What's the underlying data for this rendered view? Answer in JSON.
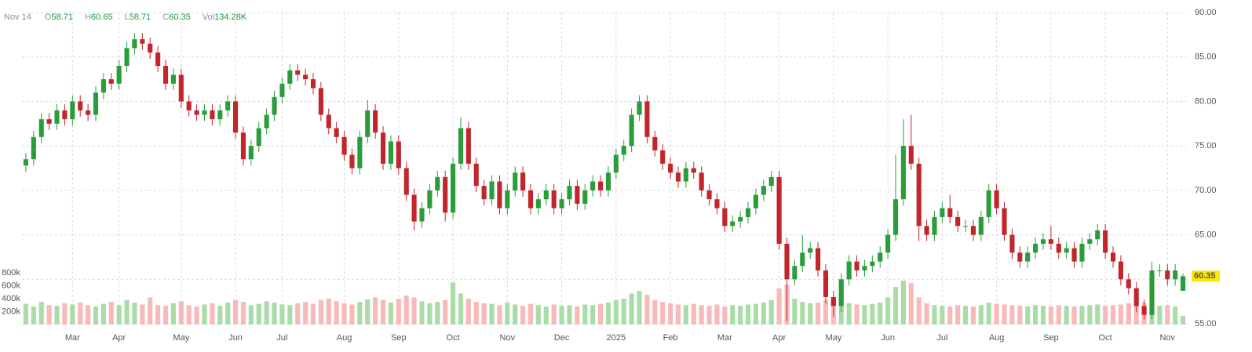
{
  "chart_data": {
    "type": "candlestick",
    "legend_date": "Nov 14",
    "legend": [
      {
        "label": "O",
        "text": "58.71"
      },
      {
        "label": "H",
        "text": "60.65"
      },
      {
        "label": "L",
        "text": "58.71"
      },
      {
        "label": "C",
        "text": "60.35"
      },
      {
        "label": "Vol",
        "text": "134.28K"
      }
    ],
    "last_price_label": "60.35",
    "up_color": "#2a9d3a",
    "down_color": "#c0262b",
    "volume_up_color": "#a9dca6",
    "volume_down_color": "#f8b9b9",
    "last_price_color": "#ffe500",
    "grid": true,
    "xlim": [
      -0.5,
      149.5
    ],
    "xticks": [
      {
        "value": 6,
        "label": "Mar"
      },
      {
        "value": 12,
        "label": "Apr"
      },
      {
        "value": 20,
        "label": "May"
      },
      {
        "value": 27,
        "label": "Jun"
      },
      {
        "value": 33,
        "label": "Jul"
      },
      {
        "value": 41,
        "label": "Aug"
      },
      {
        "value": 48,
        "label": "Sep"
      },
      {
        "value": 55,
        "label": "Oct"
      },
      {
        "value": 62,
        "label": "Nov"
      },
      {
        "value": 69,
        "label": "Dec"
      },
      {
        "value": 76,
        "label": "2025"
      },
      {
        "value": 83,
        "label": "Feb"
      },
      {
        "value": 90,
        "label": "Mar"
      },
      {
        "value": 97,
        "label": "Apr"
      },
      {
        "value": 104,
        "label": "May"
      },
      {
        "value": 111,
        "label": "Jun"
      },
      {
        "value": 118,
        "label": "Jul"
      },
      {
        "value": 125,
        "label": "Aug"
      },
      {
        "value": 132,
        "label": "Sep"
      },
      {
        "value": 139,
        "label": "Oct"
      },
      {
        "value": 147,
        "label": "Nov"
      }
    ],
    "ylim": [
      55,
      90
    ],
    "yticks": [
      {
        "value": 55,
        "label": "55.00"
      },
      {
        "value": 60,
        "label": "60.00"
      },
      {
        "value": 65,
        "label": "65.00"
      },
      {
        "value": 70,
        "label": "70.00"
      },
      {
        "value": 75,
        "label": "75.00"
      },
      {
        "value": 80,
        "label": "80.00"
      },
      {
        "value": 85,
        "label": "85.00"
      },
      {
        "value": 90,
        "label": "90.00"
      }
    ],
    "volume_ylim": [
      0,
      1000000
    ],
    "volume_ticks": [
      {
        "value": 200000,
        "label": "200k"
      },
      {
        "value": 400000,
        "label": "400k"
      },
      {
        "value": 600000,
        "label": "600k"
      },
      {
        "value": 800000,
        "label": "800k"
      }
    ],
    "open": [
      72.8,
      73.5,
      76,
      78,
      77.5,
      79,
      78,
      80,
      79,
      78.5,
      81,
      82.5,
      82,
      84,
      86,
      87,
      86.5,
      85.5,
      84,
      82,
      83,
      80,
      79,
      78.5,
      79,
      78,
      79,
      80,
      76.5,
      73.5,
      75,
      77,
      78.5,
      80.5,
      82,
      83.5,
      83,
      82.5,
      81.5,
      78.5,
      77,
      76,
      74,
      72.5,
      76,
      79,
      76.5,
      73,
      75.5,
      72.5,
      69.5,
      66.5,
      68,
      70,
      71.5,
      67.5,
      73,
      77,
      73,
      70.5,
      69,
      71,
      68,
      70,
      72,
      70,
      68,
      69,
      70,
      68,
      69,
      70.5,
      68.5,
      70,
      71,
      70,
      72,
      74,
      75,
      78.5,
      80,
      76,
      74.5,
      73,
      72,
      71,
      72.5,
      72,
      70,
      69,
      68,
      66,
      66.5,
      67,
      68,
      69.5,
      70.5,
      71.5,
      64,
      60,
      61.5,
      63,
      63.5,
      61,
      58,
      57,
      60,
      62,
      61,
      61.5,
      62,
      63,
      65,
      69,
      75,
      73,
      66,
      65,
      67,
      68,
      67,
      66,
      66,
      65,
      67,
      70,
      68,
      65,
      63,
      62,
      63,
      64,
      64.5,
      64,
      63,
      63.5,
      62,
      64,
      64.5,
      65.5,
      63,
      62,
      60,
      59,
      57,
      56,
      61,
      61,
      60,
      58.71
    ],
    "high": [
      74.2,
      76.7,
      78.7,
      78.7,
      79.7,
      79.7,
      80.7,
      80.7,
      79.7,
      81.7,
      83.2,
      83.2,
      84.7,
      86.7,
      87.7,
      87.7,
      87.2,
      86.2,
      84.7,
      83.7,
      83.7,
      80.7,
      79.7,
      79.7,
      79.7,
      79.7,
      80.7,
      80.7,
      77.2,
      75.7,
      77.7,
      79.2,
      81.2,
      82.7,
      84.2,
      84.2,
      83.7,
      83.2,
      82.2,
      79.2,
      77.7,
      76.7,
      74.7,
      76.7,
      80.2,
      79.7,
      77.2,
      76.2,
      76.2,
      73.2,
      70.2,
      68.7,
      70.7,
      72.2,
      72.2,
      73.7,
      78.2,
      77.7,
      73.7,
      71.2,
      71.7,
      71.7,
      70.7,
      72.7,
      72.7,
      70.7,
      69.7,
      70.7,
      70.7,
      69.7,
      71.2,
      71.2,
      70.7,
      71.7,
      71.7,
      72.7,
      74.7,
      75.7,
      79.2,
      80.7,
      80.7,
      76.7,
      75.2,
      73.7,
      72.7,
      73.2,
      73.2,
      72.7,
      70.7,
      69.7,
      68.7,
      67.2,
      67.7,
      68.7,
      70.2,
      71.2,
      72.2,
      72.2,
      64.7,
      62.2,
      65.0,
      64.2,
      64.2,
      61.7,
      58.7,
      60.7,
      62.7,
      62.7,
      62.2,
      62.7,
      63.7,
      65.7,
      74.0,
      78.0,
      78.5,
      73.7,
      66.7,
      67.7,
      68.7,
      69.5,
      67.7,
      66.7,
      66.7,
      67.7,
      70.7,
      70.7,
      68.7,
      65.7,
      63.7,
      63.7,
      64.7,
      65.2,
      66.0,
      64.7,
      64.2,
      64.2,
      64.7,
      65.2,
      66.2,
      66.2,
      63.7,
      62.7,
      60.7,
      59.7,
      57.7,
      62.0,
      61.7,
      61.7,
      61.7,
      60.65
    ],
    "low": [
      72.1,
      72.8,
      75.3,
      76.8,
      76.8,
      77.3,
      77.3,
      78.3,
      77.8,
      77.8,
      80.3,
      81.3,
      81.3,
      83.3,
      85.3,
      85.8,
      84.8,
      83.3,
      81.3,
      81.3,
      79.3,
      78.3,
      77.8,
      77.8,
      77.3,
      77.3,
      78.3,
      75.8,
      72.8,
      72.8,
      74.3,
      76.3,
      77.8,
      79.8,
      81.3,
      82.3,
      81.8,
      80.8,
      77.8,
      76.3,
      75.3,
      73.3,
      71.8,
      71.8,
      75.3,
      75.8,
      72.3,
      72.3,
      71.8,
      68.8,
      65.5,
      65.8,
      67.3,
      69.3,
      66.5,
      66.8,
      72.3,
      72.3,
      69.8,
      68.3,
      68.3,
      67.3,
      67.3,
      69.3,
      69.3,
      67.3,
      67.3,
      68.3,
      67.3,
      67.3,
      68.3,
      67.8,
      67.8,
      69.3,
      69.3,
      69.3,
      71.3,
      73.3,
      74.3,
      77.8,
      75.3,
      73.8,
      72.3,
      71.3,
      70.3,
      70.3,
      71.3,
      69.3,
      68.3,
      67.3,
      65.3,
      65.3,
      65.8,
      66.3,
      67.3,
      68.8,
      69.8,
      63.3,
      55.3,
      59.3,
      60.8,
      62.3,
      60.3,
      57.3,
      55.8,
      56.3,
      59.3,
      60.3,
      60.3,
      60.8,
      61.3,
      62.3,
      64.3,
      68.3,
      72.3,
      64.3,
      64.3,
      64.3,
      66.3,
      66.3,
      65.3,
      65.3,
      64.3,
      64.3,
      66.3,
      67.3,
      64.3,
      62.3,
      61.3,
      61.3,
      62.3,
      63.3,
      63.3,
      62.3,
      62.3,
      61.3,
      61.3,
      63.3,
      63.8,
      62.3,
      61.3,
      59.3,
      58.3,
      56.3,
      55.5,
      55.5,
      60.3,
      59.3,
      59.3,
      58.71
    ],
    "close": [
      73.5,
      76,
      78,
      77.5,
      79,
      78,
      80,
      79,
      78.5,
      81,
      82.5,
      82,
      84,
      86,
      87,
      86.5,
      85.5,
      84,
      82,
      83,
      80,
      79,
      78.5,
      79,
      78,
      79,
      80,
      76.5,
      73.5,
      75,
      77,
      78.5,
      80.5,
      82,
      83.5,
      83,
      82.5,
      81.5,
      78.5,
      77,
      76,
      74,
      72.5,
      76,
      79,
      76.5,
      73,
      75.5,
      72.5,
      69.5,
      66.5,
      68,
      70,
      71.5,
      67.5,
      73,
      77,
      73,
      70.5,
      69,
      71,
      68,
      70,
      72,
      70,
      68,
      69,
      70,
      68,
      69,
      70.5,
      68.5,
      70,
      71,
      70,
      72,
      74,
      75,
      78.5,
      80,
      76,
      74.5,
      73,
      72,
      71,
      72.5,
      72,
      70,
      69,
      68,
      66,
      66.5,
      67,
      68,
      69.5,
      70.5,
      71.5,
      64,
      60,
      61.5,
      63,
      63.5,
      61,
      58,
      57,
      60,
      62,
      61,
      61.5,
      62,
      63,
      65,
      69,
      75,
      73,
      66,
      65,
      67,
      68,
      67,
      66,
      66,
      65,
      67,
      70,
      68,
      65,
      63,
      62,
      63,
      64,
      64.5,
      64,
      63,
      63.5,
      62,
      64,
      64.5,
      65.5,
      63,
      62,
      60,
      59,
      57,
      56,
      61,
      61,
      60,
      61,
      60.35
    ],
    "volume": [
      320000,
      280000,
      350000,
      300000,
      290000,
      330000,
      310000,
      340000,
      300000,
      280000,
      320000,
      350000,
      300000,
      380000,
      340000,
      310000,
      420000,
      300000,
      290000,
      330000,
      360000,
      300000,
      280000,
      310000,
      330000,
      290000,
      340000,
      380000,
      350000,
      300000,
      320000,
      360000,
      340000,
      310000,
      300000,
      330000,
      350000,
      320000,
      380000,
      400000,
      360000,
      330000,
      310000,
      350000,
      390000,
      420000,
      380000,
      340000,
      400000,
      450000,
      420000,
      360000,
      330000,
      350000,
      380000,
      650000,
      480000,
      400000,
      350000,
      330000,
      320000,
      300000,
      340000,
      310000,
      290000,
      320000,
      300000,
      280000,
      310000,
      290000,
      300000,
      280000,
      310000,
      300000,
      320000,
      340000,
      380000,
      400000,
      480000,
      520000,
      460000,
      380000,
      350000,
      330000,
      310000,
      300000,
      320000,
      300000,
      290000,
      310000,
      280000,
      300000,
      290000,
      310000,
      320000,
      340000,
      380000,
      560000,
      620000,
      400000,
      350000,
      330000,
      340000,
      380000,
      420000,
      360000,
      330000,
      310000,
      300000,
      320000,
      340000,
      420000,
      580000,
      680000,
      640000,
      420000,
      330000,
      300000,
      290000,
      280000,
      300000,
      290000,
      280000,
      300000,
      340000,
      320000,
      310000,
      300000,
      290000,
      280000,
      300000,
      290000,
      280000,
      300000,
      290000,
      280000,
      290000,
      300000,
      310000,
      290000,
      300000,
      310000,
      330000,
      320000,
      340000,
      310000,
      290000,
      300000,
      280000,
      134280
    ]
  }
}
